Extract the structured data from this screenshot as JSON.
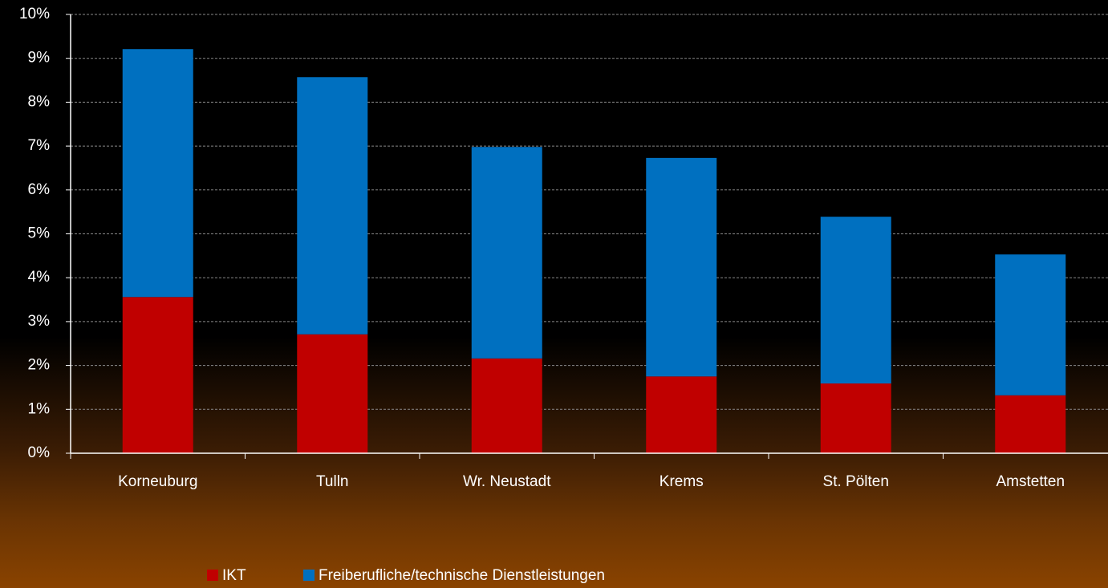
{
  "chart_data": {
    "type": "stacked-bar",
    "categories": [
      "Korneuburg",
      "Tulln",
      "Wr. Neustadt",
      "Krems",
      "St. Pölten",
      "Amstetten"
    ],
    "series": [
      {
        "name": "IKT",
        "color": "#c00000",
        "values": [
          3.56,
          2.71,
          2.16,
          1.75,
          1.59,
          1.32
        ]
      },
      {
        "name": "Freiberufliche/technische Dienstleistungen",
        "color": "#0070c0",
        "values": [
          5.65,
          5.86,
          4.82,
          4.98,
          3.8,
          3.21
        ]
      }
    ],
    "ylim": [
      0,
      10
    ],
    "yticks": [
      {
        "value": 0,
        "label": "0%"
      },
      {
        "value": 1,
        "label": "1%"
      },
      {
        "value": 2,
        "label": "2%"
      },
      {
        "value": 3,
        "label": "3%"
      },
      {
        "value": 4,
        "label": "4%"
      },
      {
        "value": 5,
        "label": "5%"
      },
      {
        "value": 6,
        "label": "6%"
      },
      {
        "value": 7,
        "label": "7%"
      },
      {
        "value": 8,
        "label": "8%"
      },
      {
        "value": 9,
        "label": "9%"
      },
      {
        "value": 10,
        "label": "10%"
      }
    ],
    "grid": true,
    "legend": "bottom"
  }
}
